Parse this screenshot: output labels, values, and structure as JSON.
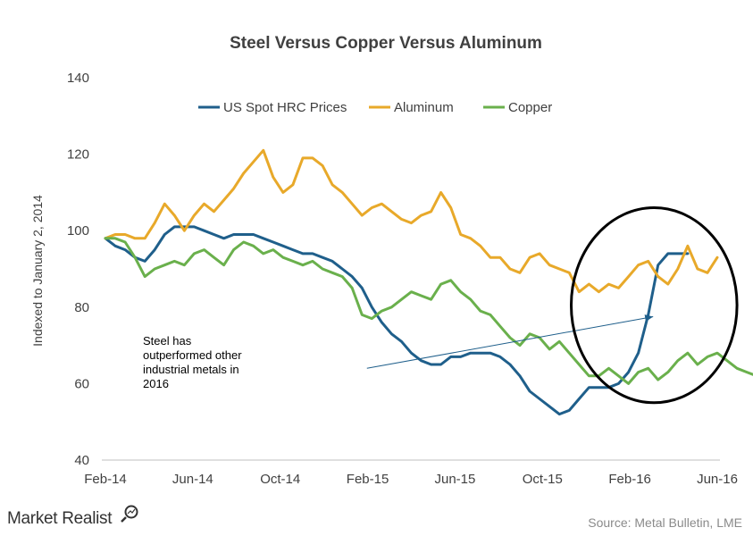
{
  "chart_data": {
    "type": "line",
    "title": "Steel Versus Copper Versus Aluminum",
    "ylabel": "Indexed to January 2, 2014",
    "xlabel": "",
    "ylim": [
      40,
      140
    ],
    "yticks": [
      "140",
      "120",
      "100",
      "80",
      "60",
      "40"
    ],
    "xticks": [
      "Feb-14",
      "Jun-14",
      "Oct-14",
      "Feb-15",
      "Jun-15",
      "Oct-15",
      "Feb-16",
      "Jun-16"
    ],
    "grid": false,
    "legend_position": "top",
    "x_index_note_range": [
      0,
      28
    ],
    "series": [
      {
        "name": "US Spot HRC Prices",
        "color": "#1f5f8b",
        "values": [
          98,
          96,
          95,
          93,
          92,
          95,
          99,
          101,
          101,
          101,
          100,
          99,
          98,
          99,
          99,
          99,
          98,
          97,
          96,
          95,
          94,
          94,
          93,
          92,
          90,
          88,
          85,
          80,
          76,
          73,
          71,
          68,
          66,
          65,
          65,
          67,
          67,
          68,
          68,
          68,
          67,
          65,
          62,
          58,
          56,
          54,
          52,
          53,
          56,
          59,
          59,
          59,
          60,
          63,
          68,
          78,
          91,
          94,
          94,
          94
        ]
      },
      {
        "name": "Aluminum",
        "color": "#e8a92a",
        "values": [
          98,
          99,
          99,
          98,
          98,
          102,
          107,
          104,
          100,
          104,
          107,
          105,
          108,
          111,
          115,
          118,
          121,
          114,
          110,
          112,
          119,
          119,
          117,
          112,
          110,
          107,
          104,
          106,
          107,
          105,
          103,
          102,
          104,
          105,
          110,
          106,
          99,
          98,
          96,
          93,
          93,
          90,
          89,
          93,
          94,
          91,
          90,
          89,
          84,
          86,
          84,
          86,
          85,
          88,
          91,
          92,
          88,
          86,
          90,
          96,
          90,
          89,
          93
        ]
      },
      {
        "name": "Copper",
        "color": "#6ab04c",
        "values": [
          98,
          98,
          97,
          93,
          88,
          90,
          91,
          92,
          91,
          94,
          95,
          93,
          91,
          95,
          97,
          96,
          94,
          95,
          93,
          92,
          91,
          92,
          90,
          89,
          88,
          85,
          78,
          77,
          79,
          80,
          82,
          84,
          83,
          82,
          86,
          87,
          84,
          82,
          79,
          78,
          75,
          72,
          70,
          73,
          72,
          69,
          71,
          68,
          65,
          62,
          62,
          64,
          62,
          60,
          63,
          64,
          61,
          63,
          66,
          68,
          65,
          67,
          68,
          66,
          64,
          63,
          62
        ]
      }
    ],
    "annotation": {
      "lines": [
        "Steel has",
        "outperformed other",
        "industrial metals in",
        "2016"
      ],
      "arrow_from_x": 26.5,
      "arrow_from_y": 64,
      "arrow_to_x": 55.5,
      "arrow_to_y": 77.5
    },
    "highlight_ellipse": {
      "center_x": 55.6,
      "center_y": 80.5,
      "radius_x": 8.4,
      "radius_y": 25.5
    }
  },
  "footer": {
    "brand": "Market Realist",
    "source": "Source:  Metal Bulletin,  LME"
  }
}
